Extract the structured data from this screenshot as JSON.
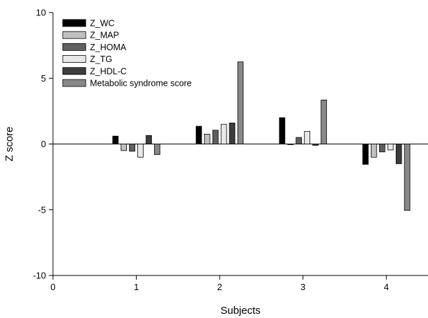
{
  "chart_data": {
    "type": "bar",
    "title": "",
    "xlabel": "Subjects",
    "ylabel": "Z score",
    "xlim": [
      0,
      4.5
    ],
    "ylim": [
      -10,
      10
    ],
    "xticks": [
      "0",
      "1",
      "2",
      "3",
      "4"
    ],
    "yticks": [
      "-10",
      "-5",
      "0",
      "5",
      "10"
    ],
    "grid": false,
    "legend_position": "top-left",
    "categories": [
      1,
      2,
      3,
      4
    ],
    "series": [
      {
        "name": "Z_WC",
        "color": "#000000",
        "values": [
          0.6,
          1.35,
          2.0,
          -1.55
        ]
      },
      {
        "name": "Z_MAP",
        "color": "#c0c0c0",
        "values": [
          -0.5,
          0.75,
          -0.05,
          -1.0
        ]
      },
      {
        "name": "Z_HOMA",
        "color": "#606060",
        "values": [
          -0.55,
          1.05,
          0.5,
          -0.6
        ]
      },
      {
        "name": "Z_TG",
        "color": "#e8e8e8",
        "values": [
          -1.0,
          1.5,
          0.95,
          -0.45
        ]
      },
      {
        "name": "Z_HDL-C",
        "color": "#3c3c3c",
        "values": [
          0.65,
          1.6,
          -0.1,
          -1.5
        ]
      },
      {
        "name": "Metabolic syndrome score",
        "color": "#888888",
        "values": [
          -0.8,
          6.25,
          3.35,
          -5.05
        ]
      }
    ]
  }
}
